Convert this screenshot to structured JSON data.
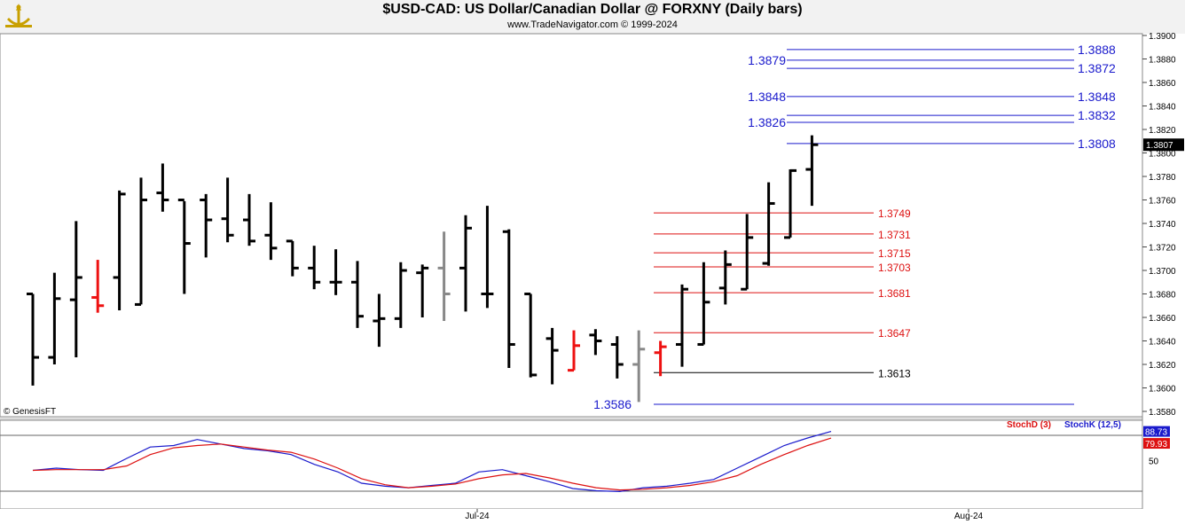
{
  "header": {
    "title": "$USD-CAD:  US Dollar/Canadian Dollar @ FORXNY  (Daily bars)",
    "copyright": "www.TradeNavigator.com © 1999-2024",
    "logo_icon": "trade-navigator-logo-icon"
  },
  "watermark": "© GenesisFT",
  "chart_data": [
    {
      "type": "ohlc",
      "title": "$USD-CAD:  US Dollar/Canadian Dollar @ FORXNY  (Daily bars)",
      "ylim": [
        1.3575,
        1.3905
      ],
      "y_ticks": [
        "1.3900",
        "1.3880",
        "1.3860",
        "1.3840",
        "1.3820",
        "1.3800",
        "1.3780",
        "1.3760",
        "1.3740",
        "1.3720",
        "1.3700",
        "1.3680",
        "1.3660",
        "1.3640",
        "1.3620",
        "1.3600",
        "1.3580"
      ],
      "x_ticks": [
        "Jul-24",
        "Aug-24"
      ],
      "last_price_label": "1.3807",
      "bars": [
        {
          "o": 1.368,
          "h": 1.368,
          "l": 1.3602,
          "c": 1.3626,
          "color": "black"
        },
        {
          "o": 1.3626,
          "h": 1.3698,
          "l": 1.362,
          "c": 1.3676,
          "color": "black"
        },
        {
          "o": 1.3675,
          "h": 1.3742,
          "l": 1.3626,
          "c": 1.3694,
          "color": "black"
        },
        {
          "o": 1.3677,
          "h": 1.3709,
          "l": 1.3664,
          "c": 1.367,
          "color": "red"
        },
        {
          "o": 1.3694,
          "h": 1.3768,
          "l": 1.3666,
          "c": 1.3765,
          "color": "black"
        },
        {
          "o": 1.3671,
          "h": 1.3779,
          "l": 1.3671,
          "c": 1.376,
          "color": "black"
        },
        {
          "o": 1.3766,
          "h": 1.3791,
          "l": 1.375,
          "c": 1.376,
          "color": "black"
        },
        {
          "o": 1.376,
          "h": 1.3759,
          "l": 1.368,
          "c": 1.3723,
          "color": "black"
        },
        {
          "o": 1.376,
          "h": 1.3765,
          "l": 1.3711,
          "c": 1.3743,
          "color": "black"
        },
        {
          "o": 1.3744,
          "h": 1.3779,
          "l": 1.3724,
          "c": 1.373,
          "color": "black"
        },
        {
          "o": 1.3743,
          "h": 1.3765,
          "l": 1.3721,
          "c": 1.3725,
          "color": "black"
        },
        {
          "o": 1.373,
          "h": 1.3758,
          "l": 1.3709,
          "c": 1.3719,
          "color": "black"
        },
        {
          "o": 1.3725,
          "h": 1.3725,
          "l": 1.3695,
          "c": 1.3702,
          "color": "black"
        },
        {
          "o": 1.3702,
          "h": 1.3721,
          "l": 1.3684,
          "c": 1.369,
          "color": "black"
        },
        {
          "o": 1.369,
          "h": 1.3718,
          "l": 1.3679,
          "c": 1.369,
          "color": "black"
        },
        {
          "o": 1.369,
          "h": 1.3708,
          "l": 1.3651,
          "c": 1.3661,
          "color": "black"
        },
        {
          "o": 1.3657,
          "h": 1.368,
          "l": 1.3635,
          "c": 1.3659,
          "color": "black"
        },
        {
          "o": 1.3659,
          "h": 1.3707,
          "l": 1.3651,
          "c": 1.37,
          "color": "black"
        },
        {
          "o": 1.3698,
          "h": 1.3705,
          "l": 1.366,
          "c": 1.3702,
          "color": "black"
        },
        {
          "o": 1.3702,
          "h": 1.3733,
          "l": 1.3657,
          "c": 1.368,
          "color": "gray"
        },
        {
          "o": 1.3702,
          "h": 1.3747,
          "l": 1.3665,
          "c": 1.3736,
          "color": "black"
        },
        {
          "o": 1.368,
          "h": 1.3755,
          "l": 1.3668,
          "c": 1.368,
          "color": "black"
        },
        {
          "o": 1.3733,
          "h": 1.3735,
          "l": 1.3617,
          "c": 1.3637,
          "color": "black"
        },
        {
          "o": 1.368,
          "h": 1.368,
          "l": 1.3609,
          "c": 1.3611,
          "color": "black"
        },
        {
          "o": 1.3642,
          "h": 1.3651,
          "l": 1.3603,
          "c": 1.3632,
          "color": "black"
        },
        {
          "o": 1.3615,
          "h": 1.3649,
          "l": 1.3615,
          "c": 1.3636,
          "color": "red"
        },
        {
          "o": 1.3645,
          "h": 1.365,
          "l": 1.3628,
          "c": 1.364,
          "color": "black"
        },
        {
          "o": 1.3637,
          "h": 1.3644,
          "l": 1.3608,
          "c": 1.362,
          "color": "black"
        },
        {
          "o": 1.362,
          "h": 1.3649,
          "l": 1.3588,
          "c": 1.3633,
          "color": "gray"
        },
        {
          "o": 1.363,
          "h": 1.364,
          "l": 1.361,
          "c": 1.3635,
          "color": "red"
        },
        {
          "o": 1.3637,
          "h": 1.3688,
          "l": 1.3618,
          "c": 1.3684,
          "color": "black"
        },
        {
          "o": 1.3637,
          "h": 1.3707,
          "l": 1.3637,
          "c": 1.3673,
          "color": "black"
        },
        {
          "o": 1.3685,
          "h": 1.3717,
          "l": 1.3671,
          "c": 1.3705,
          "color": "black"
        },
        {
          "o": 1.3684,
          "h": 1.3748,
          "l": 1.3684,
          "c": 1.3728,
          "color": "black"
        },
        {
          "o": 1.3706,
          "h": 1.3775,
          "l": 1.3704,
          "c": 1.3757,
          "color": "black"
        },
        {
          "o": 1.3728,
          "h": 1.3786,
          "l": 1.3728,
          "c": 1.3785,
          "color": "black"
        },
        {
          "o": 1.3786,
          "h": 1.3815,
          "l": 1.3755,
          "c": 1.3807,
          "color": "black"
        }
      ],
      "levels": [
        {
          "value": 1.3888,
          "label": "1.3888",
          "color": "#1a1acc",
          "side": "right"
        },
        {
          "value": 1.3879,
          "label": "1.3879",
          "color": "#1a1acc",
          "side": "left"
        },
        {
          "value": 1.3872,
          "label": "1.3872",
          "color": "#1a1acc",
          "side": "right"
        },
        {
          "value": 1.3848,
          "label": "1.3848",
          "color": "#1a1acc",
          "side": "both"
        },
        {
          "value": 1.3832,
          "label": "1.3832",
          "color": "#1a1acc",
          "side": "right"
        },
        {
          "value": 1.3826,
          "label": "1.3826",
          "color": "#1a1acc",
          "side": "left"
        },
        {
          "value": 1.3808,
          "label": "1.3808",
          "color": "#1a1acc",
          "side": "right"
        },
        {
          "value": 1.3749,
          "label": "1.3749",
          "color": "#dd1111",
          "side": "right"
        },
        {
          "value": 1.3731,
          "label": "1.3731",
          "color": "#dd1111",
          "side": "right"
        },
        {
          "value": 1.3715,
          "label": "1.3715",
          "color": "#dd1111",
          "side": "right"
        },
        {
          "value": 1.3703,
          "label": "1.3703",
          "color": "#dd1111",
          "side": "right"
        },
        {
          "value": 1.3681,
          "label": "1.3681",
          "color": "#dd1111",
          "side": "right"
        },
        {
          "value": 1.3647,
          "label": "1.3647",
          "color": "#dd1111",
          "side": "right"
        },
        {
          "value": 1.3613,
          "label": "1.3613",
          "color": "#000000",
          "side": "right"
        },
        {
          "value": 1.3586,
          "label": "1.3586",
          "color": "#1a1acc",
          "side": "left"
        }
      ]
    },
    {
      "type": "line",
      "legend": [
        "StochD (3)",
        "StochK (12,5)"
      ],
      "ylim": [
        0,
        100
      ],
      "y_ticks": [
        "50"
      ],
      "last_values": {
        "stochK": "88.73",
        "stochD": "79.93"
      },
      "series": [
        {
          "name": "StochK (12,5)",
          "color": "#1a1acc",
          "values": [
            37,
            40,
            38,
            37,
            53,
            68,
            70,
            78,
            72,
            66,
            63,
            58,
            45,
            35,
            20,
            16,
            14,
            17,
            20,
            35,
            38,
            30,
            22,
            13,
            10,
            9,
            14,
            16,
            20,
            25,
            40,
            55,
            70,
            80,
            88.73
          ]
        },
        {
          "name": "StochD (3)",
          "color": "#dd1111",
          "values": [
            37,
            38,
            38,
            38,
            43,
            58,
            67,
            70,
            72,
            68,
            64,
            61,
            52,
            40,
            26,
            18,
            14,
            16,
            19,
            26,
            31,
            33,
            27,
            20,
            14,
            11,
            12,
            14,
            17,
            22,
            30,
            45,
            58,
            70,
            79.93
          ]
        }
      ]
    }
  ]
}
